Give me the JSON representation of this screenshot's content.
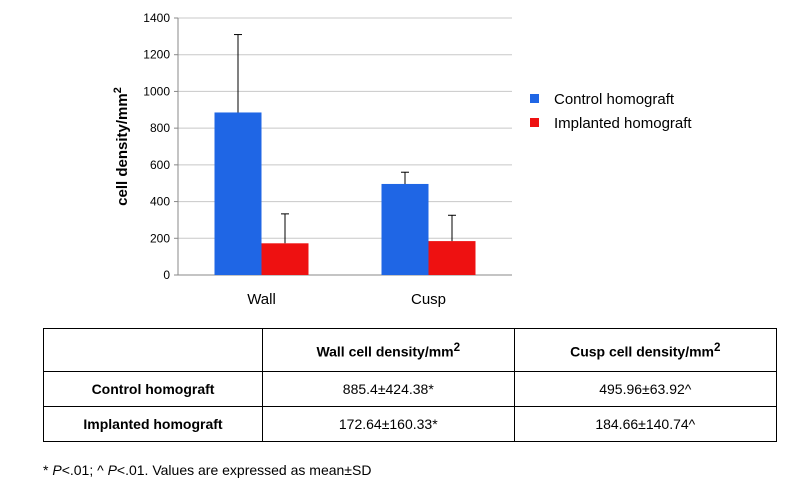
{
  "chart_data": {
    "type": "bar",
    "categories": [
      "Wall",
      "Cusp"
    ],
    "series": [
      {
        "name": "Control homograft",
        "color": "#1f66e5",
        "values": [
          885.4,
          495.96
        ],
        "errors": [
          424.38,
          63.92
        ]
      },
      {
        "name": "Implanted homograft",
        "color": "#ee1111",
        "values": [
          172.64,
          184.66
        ],
        "errors": [
          160.33,
          140.74
        ]
      }
    ],
    "ylabel": "cell density/mm",
    "ylabel_sup": "2",
    "ylim": [
      0,
      1400
    ],
    "yticks": [
      0,
      200,
      400,
      600,
      800,
      1000,
      1200,
      1400
    ],
    "grid": true,
    "legend": "right"
  },
  "table": {
    "headers": [
      "",
      "Wall cell density/mm",
      "Cusp cell density/mm"
    ],
    "header_sup": "2",
    "rows": [
      {
        "label": "Control homograft",
        "wall": "885.4±424.38*",
        "cusp": "495.96±63.92^"
      },
      {
        "label": "Implanted homograft",
        "wall": "172.64±160.33*",
        "cusp": "184.66±140.74^"
      }
    ]
  },
  "footnote": {
    "part1": "* ",
    "p1": "P",
    "part2": "<.01; ^ ",
    "p2": "P",
    "part3": "<.01. Values are expressed as mean±SD"
  }
}
